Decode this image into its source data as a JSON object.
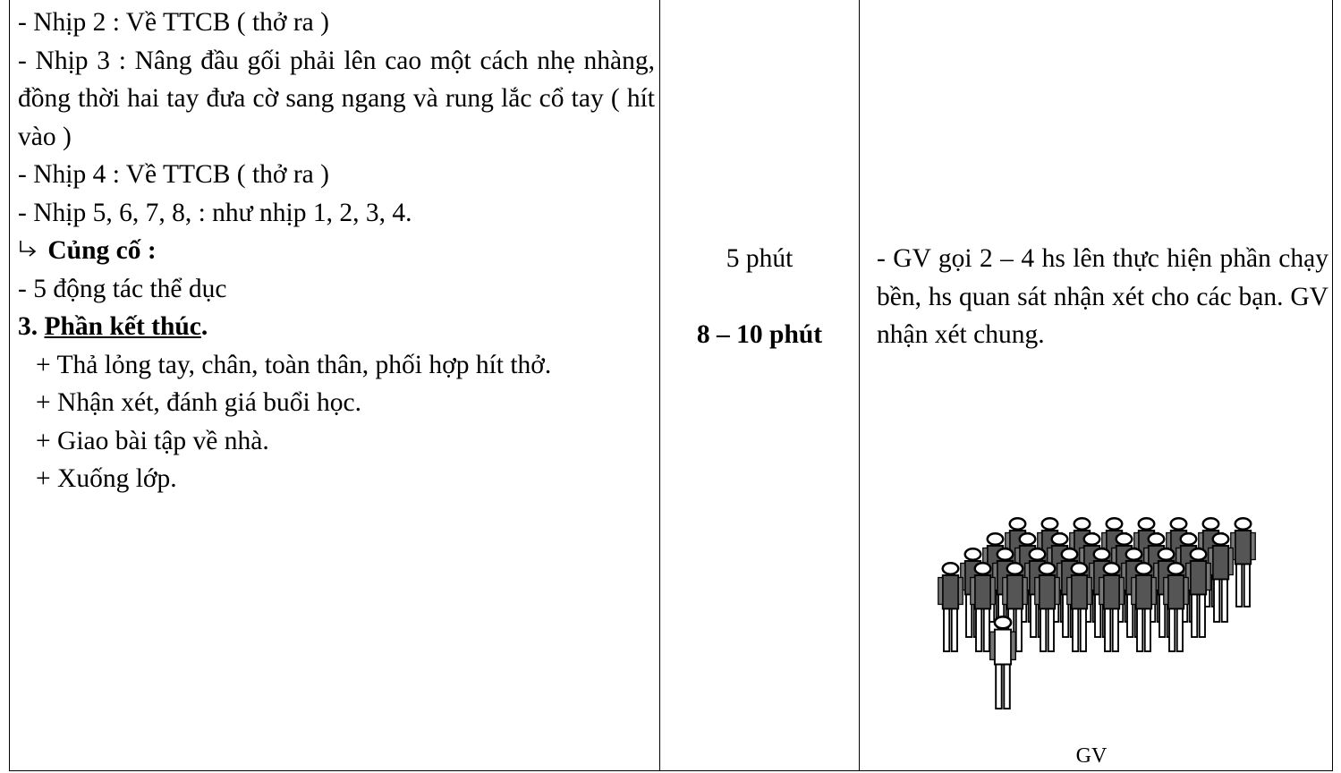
{
  "table": {
    "left": {
      "lines": [
        "- Nhịp 2 : Về TTCB ( thở ra )",
        "- Nhịp 3 : Nâng đầu gối phải lên cao một cách nhẹ nhàng, đồng thời hai tay đưa cờ sang ngang và rung lắc cổ tay ( hít vào )",
        "- Nhịp 4 : Về TTCB ( thở ra )",
        "- Nhịp 5, 6, 7, 8,  : như nhịp  1, 2, 3, 4."
      ],
      "review_heading": "Củng cố :",
      "review_item": "- 5 động tác thể dục",
      "section_number": "3.",
      "section_title": "Phần kết thúc",
      "section_suffix": ".",
      "items": [
        "+ Thả lỏng tay, chân, toàn thân, phối hợp hít thở.",
        "+ Nhận xét, đánh giá buổi học.",
        "+ Giao bài tập về nhà.",
        "+ Xuống lớp."
      ]
    },
    "middle": {
      "time_review": "5 phút",
      "time_end": "8 – 10 phút"
    },
    "right": {
      "text": "- GV gọi 2 – 4 hs lên thực hiện phần chạy bền, hs quan sát  nhận xét cho các bạn. GV nhận xét chung.",
      "figure_label": "GV"
    }
  }
}
